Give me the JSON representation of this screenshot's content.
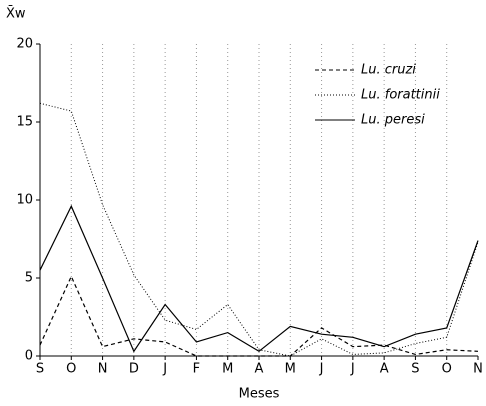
{
  "chart_data": {
    "type": "line",
    "y_label": "X̄w",
    "x_label": "Meses",
    "categories": [
      "S",
      "O",
      "N",
      "D",
      "J",
      "F",
      "M",
      "A",
      "M",
      "J",
      "J",
      "A",
      "S",
      "O",
      "N"
    ],
    "series": [
      {
        "name": "Lu. cruzi",
        "color": "#000000",
        "linestyle": "dashed",
        "values": [
          0.7,
          5.1,
          0.6,
          1.1,
          0.9,
          0.0,
          0.0,
          0.0,
          0.0,
          1.8,
          0.6,
          0.7,
          0.1,
          0.4,
          0.3
        ]
      },
      {
        "name": "Lu. forattinii",
        "color": "#000000",
        "linestyle": "dotted",
        "values": [
          16.2,
          15.7,
          9.7,
          5.2,
          2.3,
          1.7,
          3.3,
          0.4,
          0.0,
          1.1,
          0.1,
          0.2,
          0.8,
          1.2,
          7.3
        ]
      },
      {
        "name": "Lu. peresi",
        "color": "#000000",
        "linestyle": "solid",
        "values": [
          5.5,
          9.6,
          5.0,
          0.3,
          3.3,
          0.9,
          1.5,
          0.3,
          1.9,
          1.4,
          1.2,
          0.6,
          1.4,
          1.8,
          7.4
        ]
      }
    ],
    "ylim": [
      0,
      20
    ],
    "yticks": [
      0,
      5,
      10,
      15,
      20
    ],
    "grid": "vertical",
    "legend": "upper right"
  }
}
